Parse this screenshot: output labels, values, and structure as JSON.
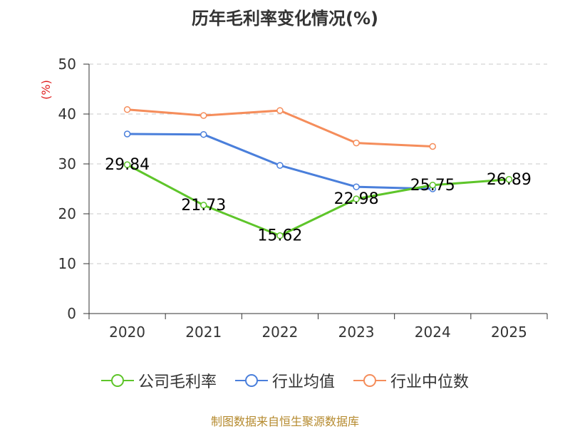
{
  "chart_data": {
    "type": "line",
    "title": "历年毛利率变化情况(%)",
    "ylabel": "(%)",
    "xlabel": "",
    "categories": [
      "2020",
      "2021",
      "2022",
      "2023",
      "2024",
      "2025"
    ],
    "ylim": [
      0,
      50
    ],
    "yticks": [
      0,
      10,
      20,
      30,
      40,
      50
    ],
    "grid": true,
    "legend_position": "bottom",
    "series": [
      {
        "name": "公司毛利率",
        "color": "#5ec52a",
        "values": [
          29.84,
          21.73,
          15.62,
          22.98,
          25.75,
          26.89
        ],
        "labels": [
          "29.84",
          "21.73",
          "15.62",
          "22.98",
          "25.75",
          "26.89"
        ]
      },
      {
        "name": "行业均值",
        "color": "#4a7fdb",
        "values": [
          36.0,
          35.9,
          29.7,
          25.4,
          25.0,
          null
        ]
      },
      {
        "name": "行业中位数",
        "color": "#f58d5b",
        "values": [
          40.9,
          39.7,
          40.7,
          34.2,
          33.5,
          null
        ]
      }
    ]
  },
  "source_text": "制图数据来自恒生聚源数据库"
}
